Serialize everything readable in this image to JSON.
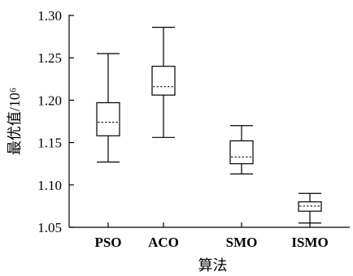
{
  "chart_data": {
    "type": "box",
    "xlabel": "算法",
    "ylabel": "最优值/10⁶",
    "ylim": [
      1.05,
      1.3
    ],
    "yticks": [
      "1.05",
      "1.10",
      "1.15",
      "1.20",
      "1.25",
      "1.30"
    ],
    "grid": false,
    "categories": [
      "PSO",
      "ACO",
      "SMO",
      "ISMO"
    ],
    "series": [
      {
        "category": "PSO",
        "min": 1.127,
        "q1": 1.158,
        "mean": 1.174,
        "q3": 1.197,
        "max": 1.255
      },
      {
        "category": "ACO",
        "min": 1.156,
        "q1": 1.206,
        "mean": 1.216,
        "q3": 1.24,
        "max": 1.286
      },
      {
        "category": "SMO",
        "min": 1.113,
        "q1": 1.125,
        "mean": 1.133,
        "q3": 1.152,
        "max": 1.17
      },
      {
        "category": "ISMO",
        "min": 1.055,
        "q1": 1.069,
        "mean": 1.075,
        "q3": 1.08,
        "max": 1.09
      }
    ]
  }
}
